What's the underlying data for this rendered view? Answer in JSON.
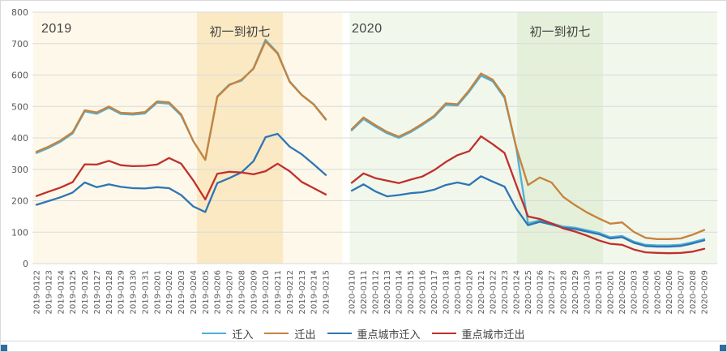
{
  "chart_data": {
    "type": "line",
    "title": "",
    "ylim": [
      0,
      800
    ],
    "ytick_step": 100,
    "grid": true,
    "legend_position": "bottom",
    "axis_text_color": "#595959",
    "grid_color": "#dadada",
    "panels": [
      {
        "title": "2019",
        "annotation": "初一到初七",
        "panel_bg": "#fdf8e9",
        "band_bg": "#fbe9c3",
        "band_date_range": [
          "2019-0205",
          "2019-0211"
        ],
        "band_index_range": [
          13.31,
          20.44
        ],
        "dates": [
          "2019-0122",
          "2019-0123",
          "2019-0124",
          "2019-0125",
          "2019-0126",
          "2019-0127",
          "2019-0128",
          "2019-0129",
          "2019-0130",
          "2019-0131",
          "2019-0201",
          "2019-0202",
          "2019-0203",
          "2019-0204",
          "2019-0205",
          "2019-0206",
          "2019-0207",
          "2019-0208",
          "2019-0209",
          "2019-0210",
          "2019-0211",
          "2019-0212",
          "2019-0213",
          "2019-0214",
          "2019-0215"
        ]
      },
      {
        "title": "2020",
        "annotation": "初一到初七",
        "panel_bg": "#f2f7ec",
        "band_bg": "#e4f0da",
        "band_date_range": [
          "2020-0125",
          "2020-0131"
        ],
        "band_index_range": [
          14.07,
          21.38
        ],
        "dates": [
          "2020-0110",
          "2020-0111",
          "2020-0112",
          "2020-0113",
          "2020-0114",
          "2020-0115",
          "2020-0116",
          "2020-0117",
          "2020-0118",
          "2020-0119",
          "2020-0120",
          "2020-0121",
          "2020-0122",
          "2020-0123",
          "2020-0124",
          "2020-0125",
          "2020-0126",
          "2020-0127",
          "2020-0128",
          "2020-0129",
          "2020-0130",
          "2020-0131",
          "2020-0201",
          "2020-0202",
          "2020-0203",
          "2020-0204",
          "2020-0205",
          "2020-0206",
          "2020-0207",
          "2020-0208",
          "2020-0209"
        ]
      }
    ],
    "series": [
      {
        "name": "迁入",
        "color": "#4fb0d5",
        "values_2019": [
          352,
          368,
          388,
          414,
          484,
          477,
          496,
          476,
          474,
          478,
          512,
          509,
          471,
          390,
          330,
          532,
          570,
          582,
          622,
          712,
          671,
          580,
          537,
          507,
          460
        ],
        "values_2020": [
          424,
          460,
          436,
          415,
          400,
          418,
          441,
          466,
          505,
          503,
          547,
          598,
          580,
          527,
          368,
          128,
          137,
          128,
          118,
          114,
          106,
          98,
          84,
          88,
          70,
          60,
          58,
          58,
          60,
          68,
          78
        ]
      },
      {
        "name": "迁出",
        "color": "#c6823c",
        "values_2019": [
          356,
          372,
          392,
          418,
          488,
          481,
          500,
          480,
          478,
          482,
          516,
          513,
          475,
          390,
          330,
          530,
          568,
          585,
          620,
          707,
          668,
          578,
          536,
          506,
          458
        ],
        "values_2020": [
          428,
          465,
          441,
          419,
          404,
          422,
          445,
          470,
          510,
          507,
          552,
          605,
          585,
          532,
          370,
          250,
          274,
          258,
          212,
          186,
          163,
          144,
          127,
          131,
          101,
          82,
          78,
          78,
          80,
          92,
          107
        ]
      },
      {
        "name": "重点城市迁入",
        "color": "#2e75b6",
        "values_2019": [
          187,
          199,
          211,
          226,
          258,
          243,
          252,
          244,
          240,
          239,
          243,
          240,
          218,
          182,
          164,
          256,
          272,
          290,
          326,
          402,
          413,
          372,
          348,
          316,
          282
        ],
        "values_2020": [
          232,
          252,
          230,
          214,
          218,
          224,
          227,
          235,
          250,
          258,
          250,
          278,
          261,
          245,
          175,
          122,
          133,
          124,
          114,
          110,
          102,
          94,
          80,
          84,
          66,
          56,
          54,
          54,
          56,
          64,
          74
        ]
      },
      {
        "name": "重点城市迁出",
        "color": "#c0302c",
        "values_2019": [
          215,
          229,
          242,
          259,
          316,
          315,
          327,
          313,
          310,
          311,
          315,
          336,
          318,
          265,
          204,
          286,
          292,
          290,
          284,
          294,
          318,
          294,
          260,
          240,
          220
        ],
        "values_2020": [
          257,
          287,
          272,
          264,
          256,
          267,
          277,
          297,
          323,
          345,
          358,
          405,
          380,
          352,
          250,
          150,
          142,
          128,
          112,
          102,
          89,
          74,
          63,
          60,
          45,
          36,
          34,
          33,
          34,
          38,
          47
        ]
      }
    ]
  }
}
